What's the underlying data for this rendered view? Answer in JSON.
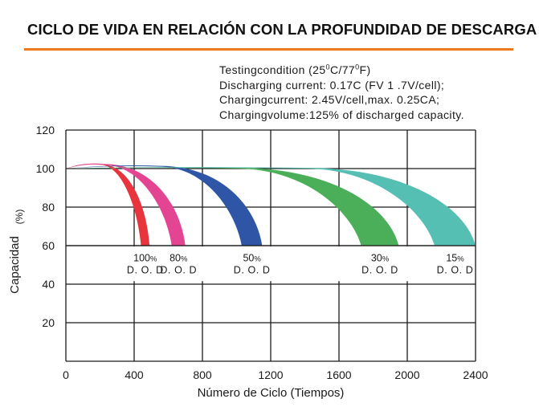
{
  "header": {
    "title": "CICLO DE VIDA EN RELACIÓN CON LA PROFUNDIDAD DE DESCARGA"
  },
  "conditions": {
    "line1_prefix": "Testingcondition (25",
    "degree_1": "0",
    "line1_mid": "C/77",
    "degree_2": "0",
    "line1_suffix": "F)",
    "line2": "Discharging current: 0.17C (FV 1 .7V/cell);",
    "line3": "Chargingcurrent: 2.45V/cell,max. 0.25CA;",
    "line4": "Chargingvolume:125% of discharged capacity."
  },
  "colors": {
    "accent_rule": "#ec7a1c",
    "grid": "#1a1a1a"
  },
  "chart_data": {
    "type": "area",
    "xlabel": "Número de Ciclo (Tiempos)",
    "ylabel": "Capacidad",
    "ylabel_unit": "(%)",
    "xlim": [
      0,
      2400
    ],
    "ylim": [
      0,
      120
    ],
    "xticks": [
      "0",
      "400",
      "800",
      "1200",
      "1600",
      "2000",
      "2400"
    ],
    "yticks": [
      "20",
      "40",
      "60",
      "80",
      "100",
      "120"
    ],
    "grid": true,
    "series": [
      {
        "dod_value": "100",
        "percent": "%",
        "dod_label": "D. O. D",
        "color": "#e8343c",
        "start": 100,
        "peak_x": 200,
        "peak": 102,
        "inner_end": 440,
        "outer_end": 490,
        "end": 60
      },
      {
        "dod_value": "80",
        "percent": "%",
        "dod_label": "D. O. D",
        "color": "#e44592",
        "start": 100,
        "peak_x": 220,
        "peak": 102,
        "inner_end": 620,
        "outer_end": 700,
        "end": 60
      },
      {
        "dod_value": "50",
        "percent": "%",
        "dod_label": "D. O. D",
        "color": "#2f55a6",
        "start": 100,
        "peak_x": 550,
        "peak": 101,
        "inner_end": 1030,
        "outer_end": 1150,
        "end": 60
      },
      {
        "dod_value": "30",
        "percent": "%",
        "dod_label": "D. O. D",
        "color": "#4aaf58",
        "start": 100,
        "peak_x": 1000,
        "peak": 100,
        "inner_end": 1730,
        "outer_end": 1950,
        "end": 60
      },
      {
        "dod_value": "15",
        "percent": "%",
        "dod_label": "D. O. D",
        "color": "#55bfb4",
        "start": 100,
        "peak_x": 1400,
        "peak": 100,
        "inner_end": 2160,
        "outer_end": 2400,
        "end": 60
      }
    ]
  }
}
